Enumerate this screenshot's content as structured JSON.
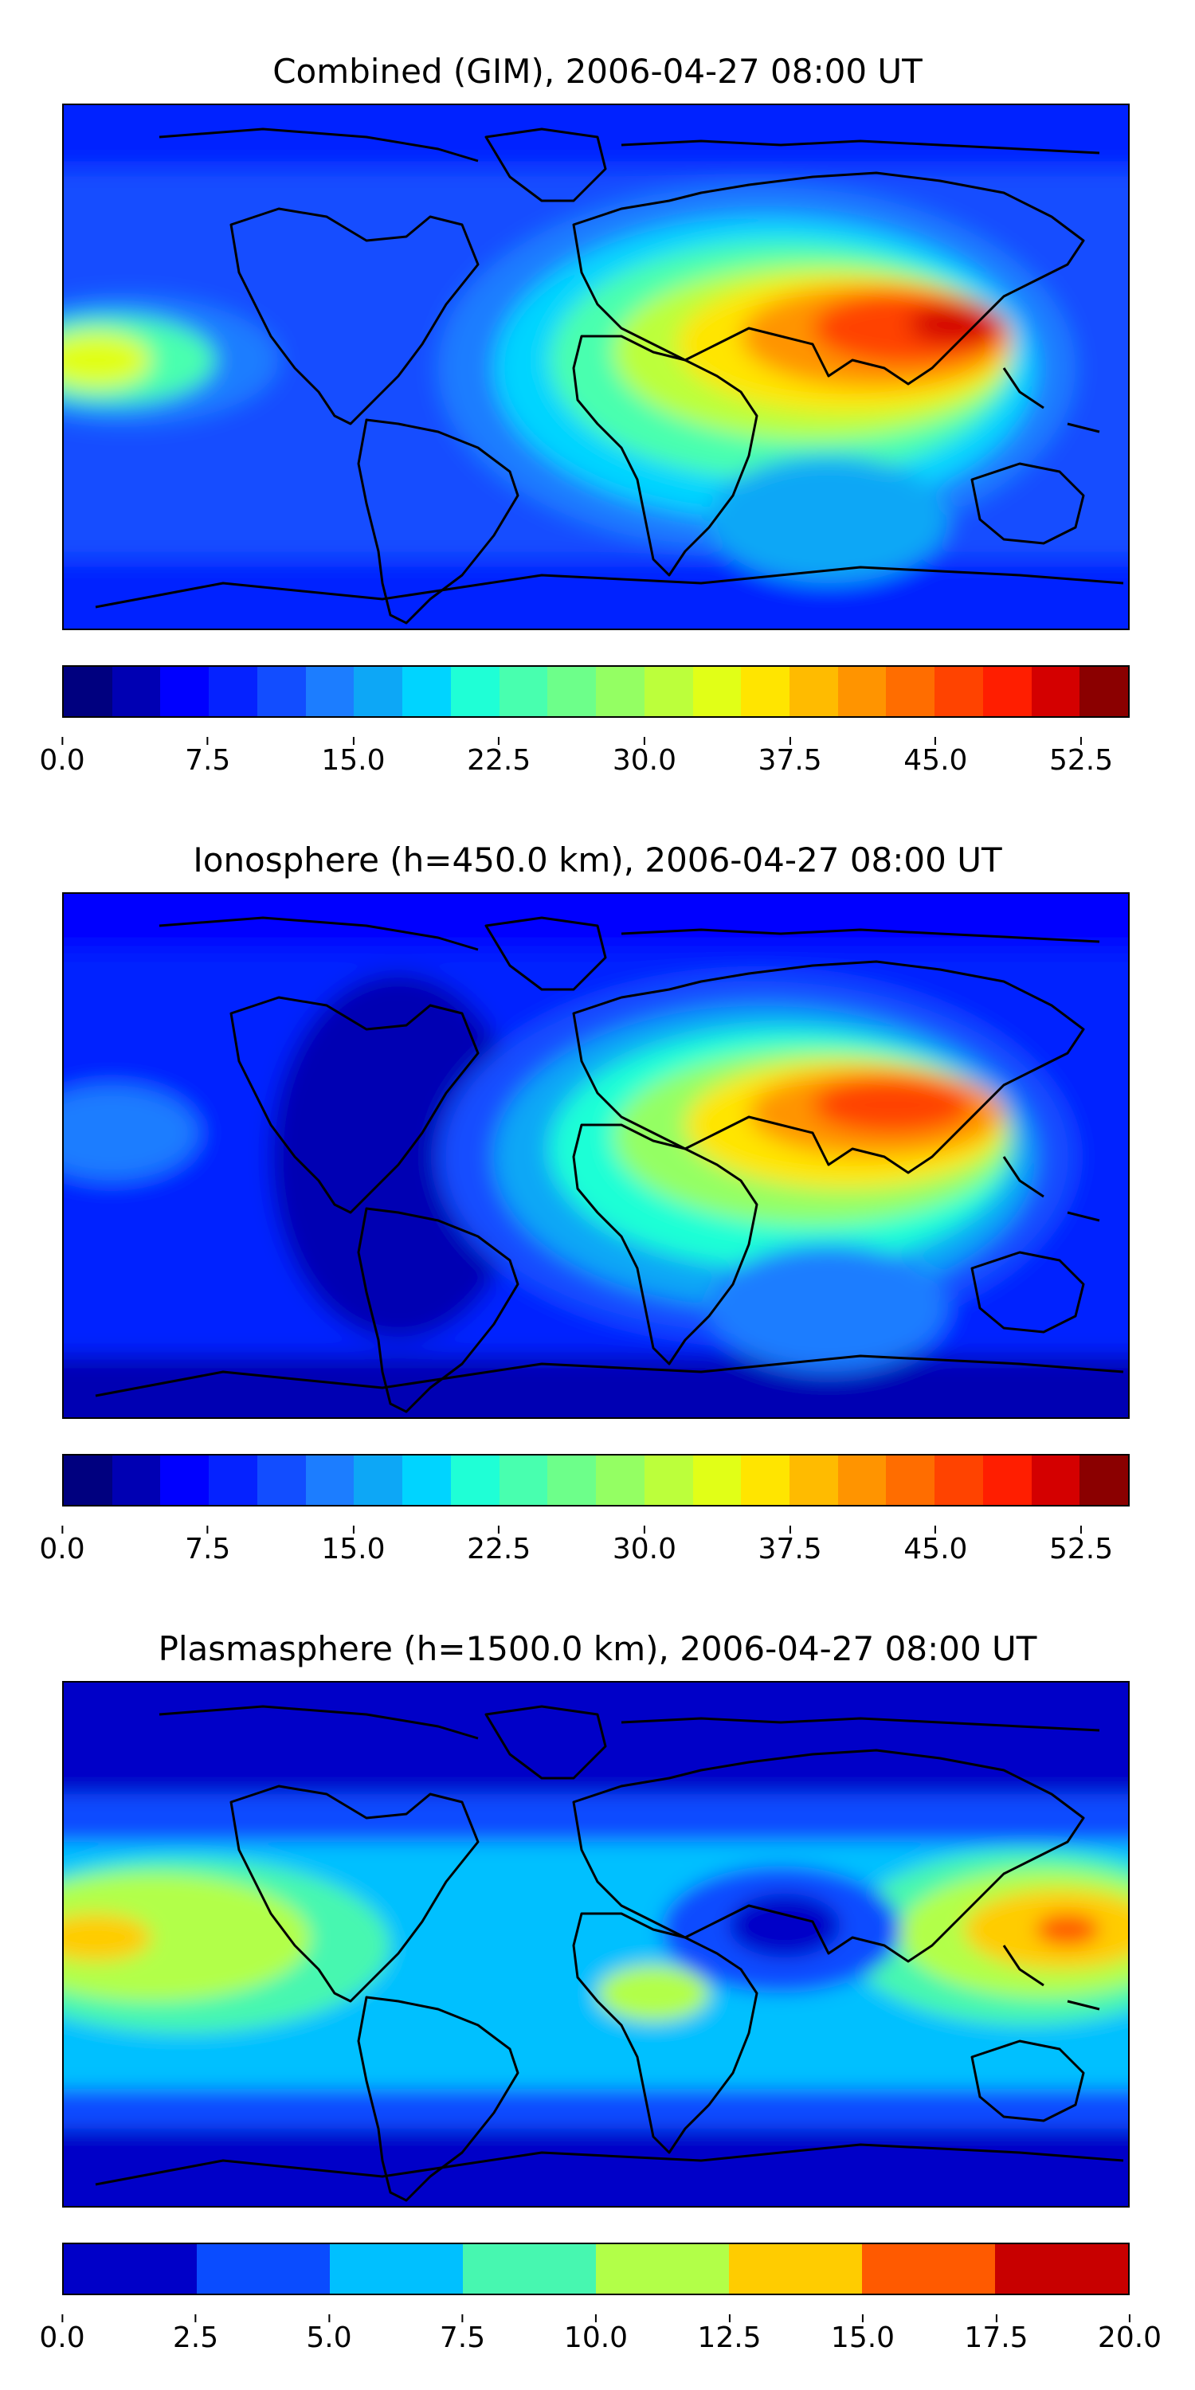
{
  "chart_data": [
    {
      "type": "heatmap",
      "title": "Combined (GIM), 2006-04-27 08:00 UT",
      "colorbar": {
        "min": 0.0,
        "max": 55.0,
        "levels": 22,
        "tick_labels": [
          "0.0",
          "7.5",
          "15.0",
          "22.5",
          "30.0",
          "37.5",
          "45.0",
          "52.5"
        ],
        "tick_values": [
          0.0,
          7.5,
          15.0,
          22.5,
          30.0,
          37.5,
          45.0,
          52.5
        ]
      },
      "peak_region": "South/Southeast Asia, peak ~52.5",
      "secondary_peak": "Central Pacific, ~30",
      "minimum": "polar latitudes, ~0-5"
    },
    {
      "type": "heatmap",
      "title": "Ionosphere  (h=450.0 km), 2006-04-27 08:00 UT",
      "colorbar": {
        "min": 0.0,
        "max": 55.0,
        "levels": 22,
        "tick_labels": [
          "0.0",
          "7.5",
          "15.0",
          "22.5",
          "30.0",
          "37.5",
          "45.0",
          "52.5"
        ],
        "tick_values": [
          0.0,
          7.5,
          15.0,
          22.5,
          30.0,
          37.5,
          45.0,
          52.5
        ]
      },
      "peak_region": "South/Southeast Asia, peak ~47.5",
      "minimum": "Americas and polar latitudes, ~0-5"
    },
    {
      "type": "heatmap",
      "title": "Plasmasphere (h=1500.0 km), 2006-04-27 08:00 UT",
      "colorbar": {
        "min": 0.0,
        "max": 20.0,
        "levels": 8,
        "tick_labels": [
          "0.0",
          "2.5",
          "5.0",
          "7.5",
          "10.0",
          "12.5",
          "15.0",
          "17.5",
          "20.0"
        ],
        "tick_values": [
          0.0,
          2.5,
          5.0,
          7.5,
          10.0,
          12.5,
          15.0,
          17.5,
          20.0
        ]
      },
      "peak_region": "Western Pacific, ~15-17.5",
      "secondary_peak": "Central Pacific, ~12.5-15",
      "minimum": "polar latitudes, ~0-2.5"
    }
  ],
  "colors": {
    "jet22": [
      "#00007f",
      "#0000b3",
      "#0000ff",
      "#0522ff",
      "#124dff",
      "#1c7dff",
      "#0da7f6",
      "#00d4ff",
      "#1fffd6",
      "#48ffaf",
      "#6dff8a",
      "#94ff63",
      "#bcff3b",
      "#e1ff17",
      "#ffe500",
      "#ffbb00",
      "#ff9400",
      "#ff6d00",
      "#ff4300",
      "#ff1e00",
      "#d40000",
      "#8b0000"
    ],
    "jet8": [
      "#0000c8",
      "#0a4cff",
      "#00c0ff",
      "#47f7b0",
      "#b2ff48",
      "#ffcc00",
      "#ff5a00",
      "#c80000"
    ]
  }
}
